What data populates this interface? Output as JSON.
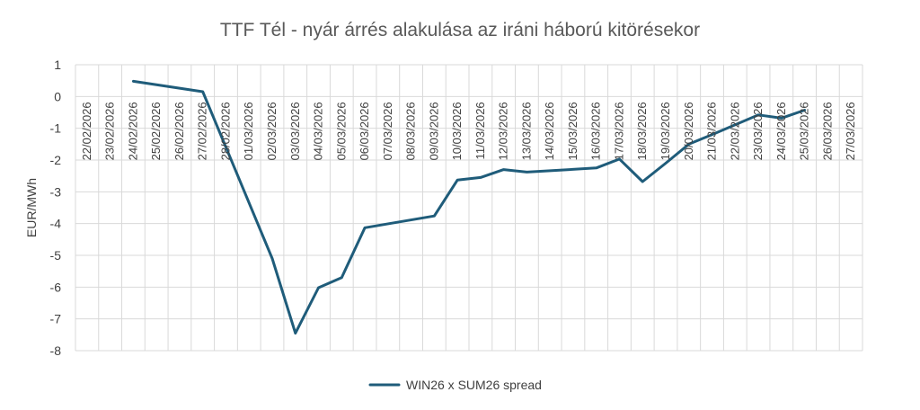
{
  "chart_data": {
    "type": "line",
    "title": "TTF Tél - nyár árrés alakulása az iráni háború kitörésekor",
    "xlabel": "",
    "ylabel": "EUR/MWh",
    "ylim": [
      -8,
      1
    ],
    "ytick_step": 1,
    "grid": true,
    "legend_position": "bottom",
    "categories": [
      "22/02/2026",
      "23/02/2026",
      "24/02/2026",
      "25/02/2026",
      "26/02/2026",
      "27/02/2026",
      "28/02/2026",
      "01/03/2026",
      "02/03/2026",
      "03/03/2026",
      "04/03/2026",
      "05/03/2026",
      "06/03/2026",
      "07/03/2026",
      "08/03/2026",
      "09/03/2026",
      "10/03/2026",
      "11/03/2026",
      "12/03/2026",
      "13/03/2026",
      "14/03/2026",
      "15/03/2026",
      "16/03/2026",
      "17/03/2026",
      "18/03/2026",
      "19/03/2026",
      "20/03/2026",
      "21/03/2026",
      "22/03/2026",
      "23/03/2026",
      "24/03/2026",
      "25/03/2026",
      "26/03/2026",
      "27/03/2026"
    ],
    "series": [
      {
        "name": "WIN26 x SUM26 spread",
        "color": "#1F5C7A",
        "points": [
          {
            "x": "24/02/2026",
            "y": 0.48
          },
          {
            "x": "27/02/2026",
            "y": 0.15
          },
          {
            "x": "02/03/2026",
            "y": -5.1
          },
          {
            "x": "03/03/2026",
            "y": -7.45
          },
          {
            "x": "04/03/2026",
            "y": -6.02
          },
          {
            "x": "05/03/2026",
            "y": -5.7
          },
          {
            "x": "06/03/2026",
            "y": -4.13
          },
          {
            "x": "09/03/2026",
            "y": -3.76
          },
          {
            "x": "10/03/2026",
            "y": -2.63
          },
          {
            "x": "11/03/2026",
            "y": -2.55
          },
          {
            "x": "12/03/2026",
            "y": -2.3
          },
          {
            "x": "13/03/2026",
            "y": -2.38
          },
          {
            "x": "16/03/2026",
            "y": -2.25
          },
          {
            "x": "17/03/2026",
            "y": -1.97
          },
          {
            "x": "18/03/2026",
            "y": -2.68
          },
          {
            "x": "19/03/2026",
            "y": -2.1
          },
          {
            "x": "20/03/2026",
            "y": -1.5
          },
          {
            "x": "21/03/2026",
            "y": -1.2
          },
          {
            "x": "23/03/2026",
            "y": -0.58
          },
          {
            "x": "24/03/2026",
            "y": -0.68
          },
          {
            "x": "25/03/2026",
            "y": -0.43
          }
        ]
      }
    ]
  }
}
